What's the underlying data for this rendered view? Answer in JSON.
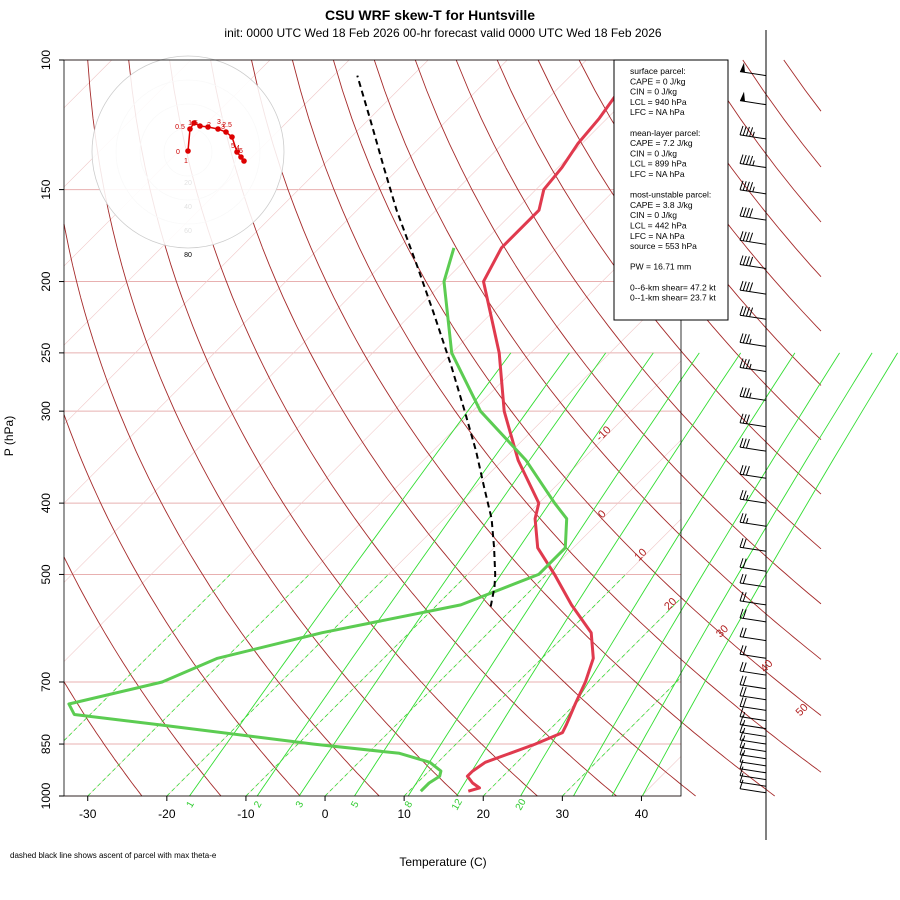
{
  "title": "CSU WRF skew-T for Huntsville",
  "subtitle": "init: 0000 UTC Wed 18 Feb 2026     00-hr forecast valid 0000 UTC Wed 18 Feb 2026",
  "footnote": "dashed black line shows ascent of parcel with max theta-e",
  "colors": {
    "temperature": "#e03a4e",
    "dewpoint": "#5ccc52",
    "isotherm": "#a52a2a",
    "mixing_ratio": "#33dd33",
    "hodograph": "#dd0000",
    "parcel": "#000000"
  },
  "info_box": [
    "surface parcel:",
    "CAPE = 0 J/kg",
    "CIN = 0 J/kg",
    "LCL = 940 hPa",
    "LFC = NA hPa",
    "",
    "mean-layer parcel:",
    "CAPE = 7.2 J/kg",
    "CIN = 0 J/kg",
    "LCL = 899 hPa",
    "LFC = NA hPa",
    "",
    "most-unstable parcel:",
    "CAPE = 3.8 J/kg",
    "CIN = 0 J/kg",
    "LCL = 442 hPa",
    "LFC = NA hPa",
    "source = 553 hPa",
    "",
    "PW =  16.71 mm",
    "",
    "0--6-km shear= 47.2 kt",
    "0--1-km shear= 23.7 kt"
  ],
  "chart_data": {
    "type": "line",
    "xlabel": "Temperature (C)",
    "ylabel": "P (hPa)",
    "xlim": [
      -33,
      45
    ],
    "ylim": [
      1000,
      100
    ],
    "log_y": true,
    "x_ticks": [
      -30,
      -20,
      -10,
      0,
      10,
      20,
      30,
      40
    ],
    "y_ticks": [
      100,
      150,
      200,
      250,
      300,
      400,
      500,
      700,
      850,
      1000
    ],
    "isotherm_labels": [
      "-10",
      "0",
      "10",
      "20",
      "30",
      "40",
      "50"
    ],
    "mixing_ratio_labels": [
      "1",
      "2",
      "3",
      "5",
      "8",
      "12",
      "20"
    ],
    "series": [
      {
        "name": "temperature",
        "pressure": [
          985,
          975,
          960,
          940,
          925,
          900,
          875,
          850,
          820,
          800,
          750,
          700,
          650,
          600,
          550,
          500,
          460,
          420,
          400,
          350,
          300,
          250,
          200,
          180,
          160,
          150,
          140,
          130,
          120,
          110,
          105
        ],
        "values": [
          17.5,
          18.5,
          17,
          15.5,
          15.5,
          16,
          18,
          20,
          22,
          21.5,
          20,
          18.5,
          16.5,
          13,
          7,
          1,
          -4.5,
          -8.5,
          -10,
          -18,
          -26,
          -34,
          -45,
          -47,
          -47,
          -49,
          -49.5,
          -50.5,
          -51,
          -52,
          -52.5
        ]
      },
      {
        "name": "dewpoint",
        "pressure": [
          985,
          960,
          940,
          925,
          900,
          875,
          850,
          800,
          775,
          750,
          700,
          650,
          600,
          550,
          500,
          460,
          420,
          400,
          350,
          300,
          250,
          200,
          180
        ],
        "values": [
          11.5,
          11.5,
          12,
          11.5,
          9,
          4,
          -8,
          -30,
          -42,
          -44,
          -35,
          -31,
          -21,
          -7,
          -1,
          -1,
          -4.5,
          -8,
          -17,
          -29,
          -40,
          -50,
          -53
        ]
      },
      {
        "name": "parcel",
        "pressure": [
          553,
          520,
          500,
          460,
          420,
          380,
          340,
          300,
          260,
          220,
          190,
          160,
          140,
          120,
          105
        ],
        "values": [
          -3,
          -5,
          -6.5,
          -10,
          -14,
          -19,
          -24.5,
          -31,
          -38.5,
          -47.5,
          -55.5,
          -65,
          -72,
          -80,
          -87
        ]
      }
    ],
    "wind_barbs": {
      "pressure": [
        105,
        115,
        128,
        140,
        152,
        165,
        178,
        192,
        208,
        225,
        245,
        265,
        290,
        315,
        340,
        370,
        400,
        430,
        465,
        495,
        520,
        550,
        580,
        615,
        650,
        685,
        715,
        740,
        765,
        790,
        810,
        830,
        850,
        870,
        890,
        910,
        930,
        950,
        970,
        990
      ],
      "speed_kt": [
        50,
        50,
        45,
        45,
        45,
        40,
        40,
        40,
        40,
        40,
        35,
        35,
        35,
        30,
        30,
        30,
        25,
        25,
        20,
        20,
        20,
        20,
        20,
        20,
        20,
        20,
        20,
        20,
        20,
        15,
        15,
        15,
        15,
        15,
        15,
        10,
        10,
        10,
        10,
        10
      ]
    },
    "hodograph": {
      "ring_labels": [
        "20",
        "40",
        "60",
        "80"
      ],
      "point_labels": [
        "0",
        "1",
        "3",
        "5",
        "6",
        "0.5",
        "1.5",
        "2",
        "2.5",
        "3",
        "4"
      ]
    }
  }
}
